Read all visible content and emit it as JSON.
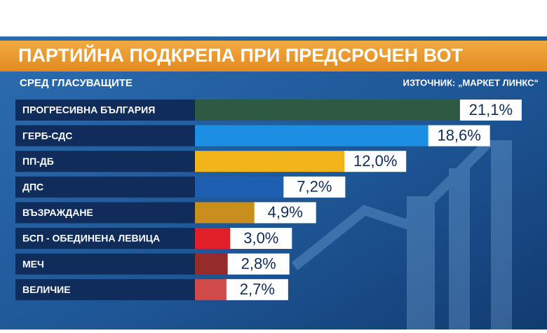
{
  "chart_data": {
    "type": "bar",
    "orientation": "horizontal",
    "title": "ПАРТИЙНА ПОДКРЕПА ПРИ ПРЕДСРОЧЕН ВОТ",
    "subtitle": "СРЕД ГЛАСУВАЩИТЕ",
    "source": "ИЗТОЧНИК: „МАРКЕТ ЛИНКС“",
    "categories": [
      "ПРОГРЕСИВНА БЪЛГАРИЯ",
      "ГЕРБ-СДС",
      "ПП-ДБ",
      "ДПС",
      "ВЪЗРАЖДАНЕ",
      "БСП - ОБЕДИНЕНА ЛЕВИЦА",
      "МЕЧ",
      "ВЕЛИЧИЕ"
    ],
    "values": [
      21.1,
      18.6,
      12.0,
      7.2,
      4.9,
      3.0,
      2.8,
      2.7
    ],
    "value_labels": [
      "21,1%",
      "18,6%",
      "12,0%",
      "7,2%",
      "4,9%",
      "3,0%",
      "2,8%",
      "2,7%"
    ],
    "colors": [
      "#2e5a44",
      "#1d8fe3",
      "#f1b51b",
      "#1f5fb2",
      "#c98f1c",
      "#e01f28",
      "#962b2b",
      "#d04a4a"
    ]
  }
}
